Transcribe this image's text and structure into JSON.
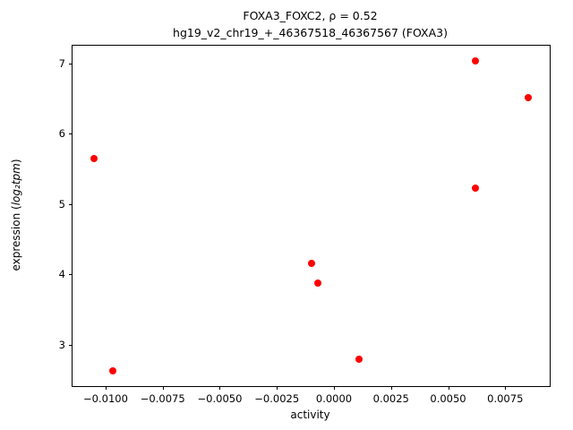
{
  "figure": {
    "title_line1": "FOXA3_FOXC2, ρ = 0.52",
    "title_line2": "hg19_v2_chr19_+_46367518_46367567 (FOXA3)",
    "xlabel": "activity",
    "ylabel_pre": "expression (",
    "ylabel_math": "log₂tpm",
    "ylabel_post": ")"
  },
  "chart_data": {
    "type": "scatter",
    "title": "FOXA3_FOXC2, ρ = 0.52\nhg19_v2_chr19_+_46367518_46367567 (FOXA3)",
    "xlabel": "activity",
    "ylabel": "expression (log2 tpm)",
    "marker_color": "#ff0000",
    "marker_size_px": 8,
    "grid": false,
    "legend": null,
    "xlim": [
      -0.01145,
      0.00945
    ],
    "ylim": [
      2.41,
      7.25
    ],
    "x": [
      -0.0105,
      -0.0097,
      -0.001,
      -0.0007,
      0.0011,
      0.0062,
      0.0062,
      0.0085
    ],
    "y": [
      5.65,
      2.63,
      4.15,
      3.87,
      2.79,
      7.03,
      5.23,
      6.51
    ],
    "xticks": {
      "values": [
        -0.01,
        -0.0075,
        -0.005,
        -0.0025,
        0.0,
        0.0025,
        0.005,
        0.0075
      ],
      "labels": [
        "−0.0100",
        "−0.0075",
        "−0.0050",
        "−0.0025",
        "0.0000",
        "0.0025",
        "0.0050",
        "0.0075"
      ]
    },
    "yticks": {
      "values": [
        3,
        4,
        5,
        6,
        7
      ],
      "labels": [
        "3",
        "4",
        "5",
        "6",
        "7"
      ]
    }
  }
}
